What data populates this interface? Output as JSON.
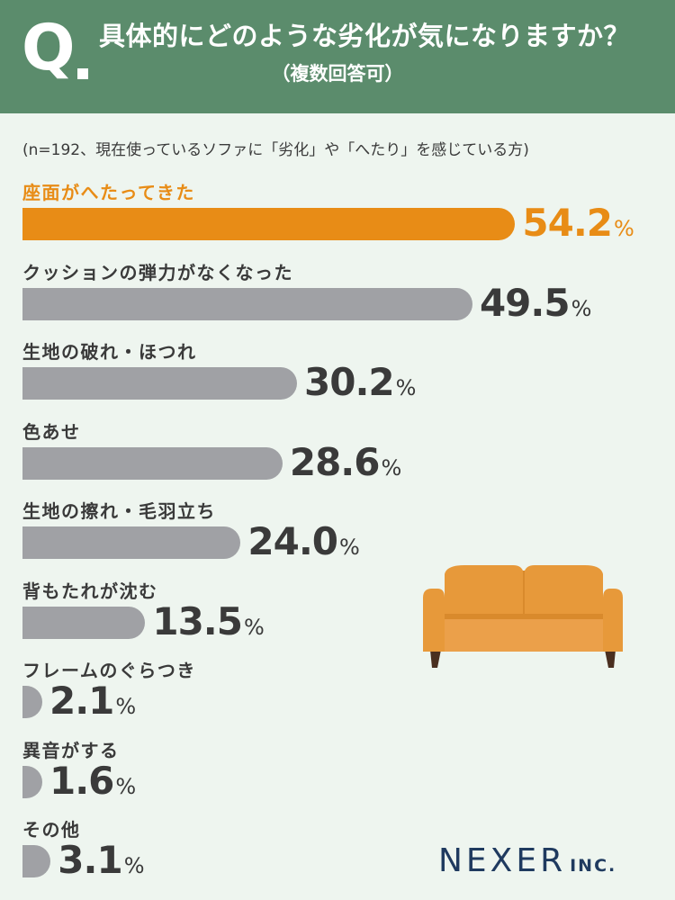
{
  "header": {
    "q_mark": "Q",
    "question": "具体的にどのような劣化が気になりますか？",
    "note": "（複数回答可）"
  },
  "sample_note": "(n=192、現在使っているソファに「劣化」や「へたり」を感じている方)",
  "colors": {
    "header_bg": "#5b8c6c",
    "page_bg": "#eef5ef",
    "highlight": "#e88c16",
    "bar": "#a0a1a5",
    "logo": "#1f3a5f"
  },
  "chart_data": {
    "type": "bar",
    "orientation": "horizontal",
    "unit": "%",
    "categories": [
      "座面がへたってきた",
      "クッションの弾力がなくなった",
      "生地の破れ・ほつれ",
      "色あせ",
      "生地の擦れ・毛羽立ち",
      "背もたれが沈む",
      "フレームのぐらつき",
      "異音がする",
      "その他"
    ],
    "values": [
      54.2,
      49.5,
      30.2,
      28.6,
      24.0,
      13.5,
      2.1,
      1.6,
      3.1
    ],
    "value_labels": [
      "54.2",
      "49.5",
      "30.2",
      "28.6",
      "24.0",
      "13.5",
      "2.1",
      "1.6",
      "3.1"
    ],
    "highlight_index": 0,
    "xlim": [
      0,
      100
    ]
  },
  "illustration": {
    "icon": "sofa-icon"
  },
  "logo": {
    "main": "NEXER",
    "sub": "INC."
  }
}
